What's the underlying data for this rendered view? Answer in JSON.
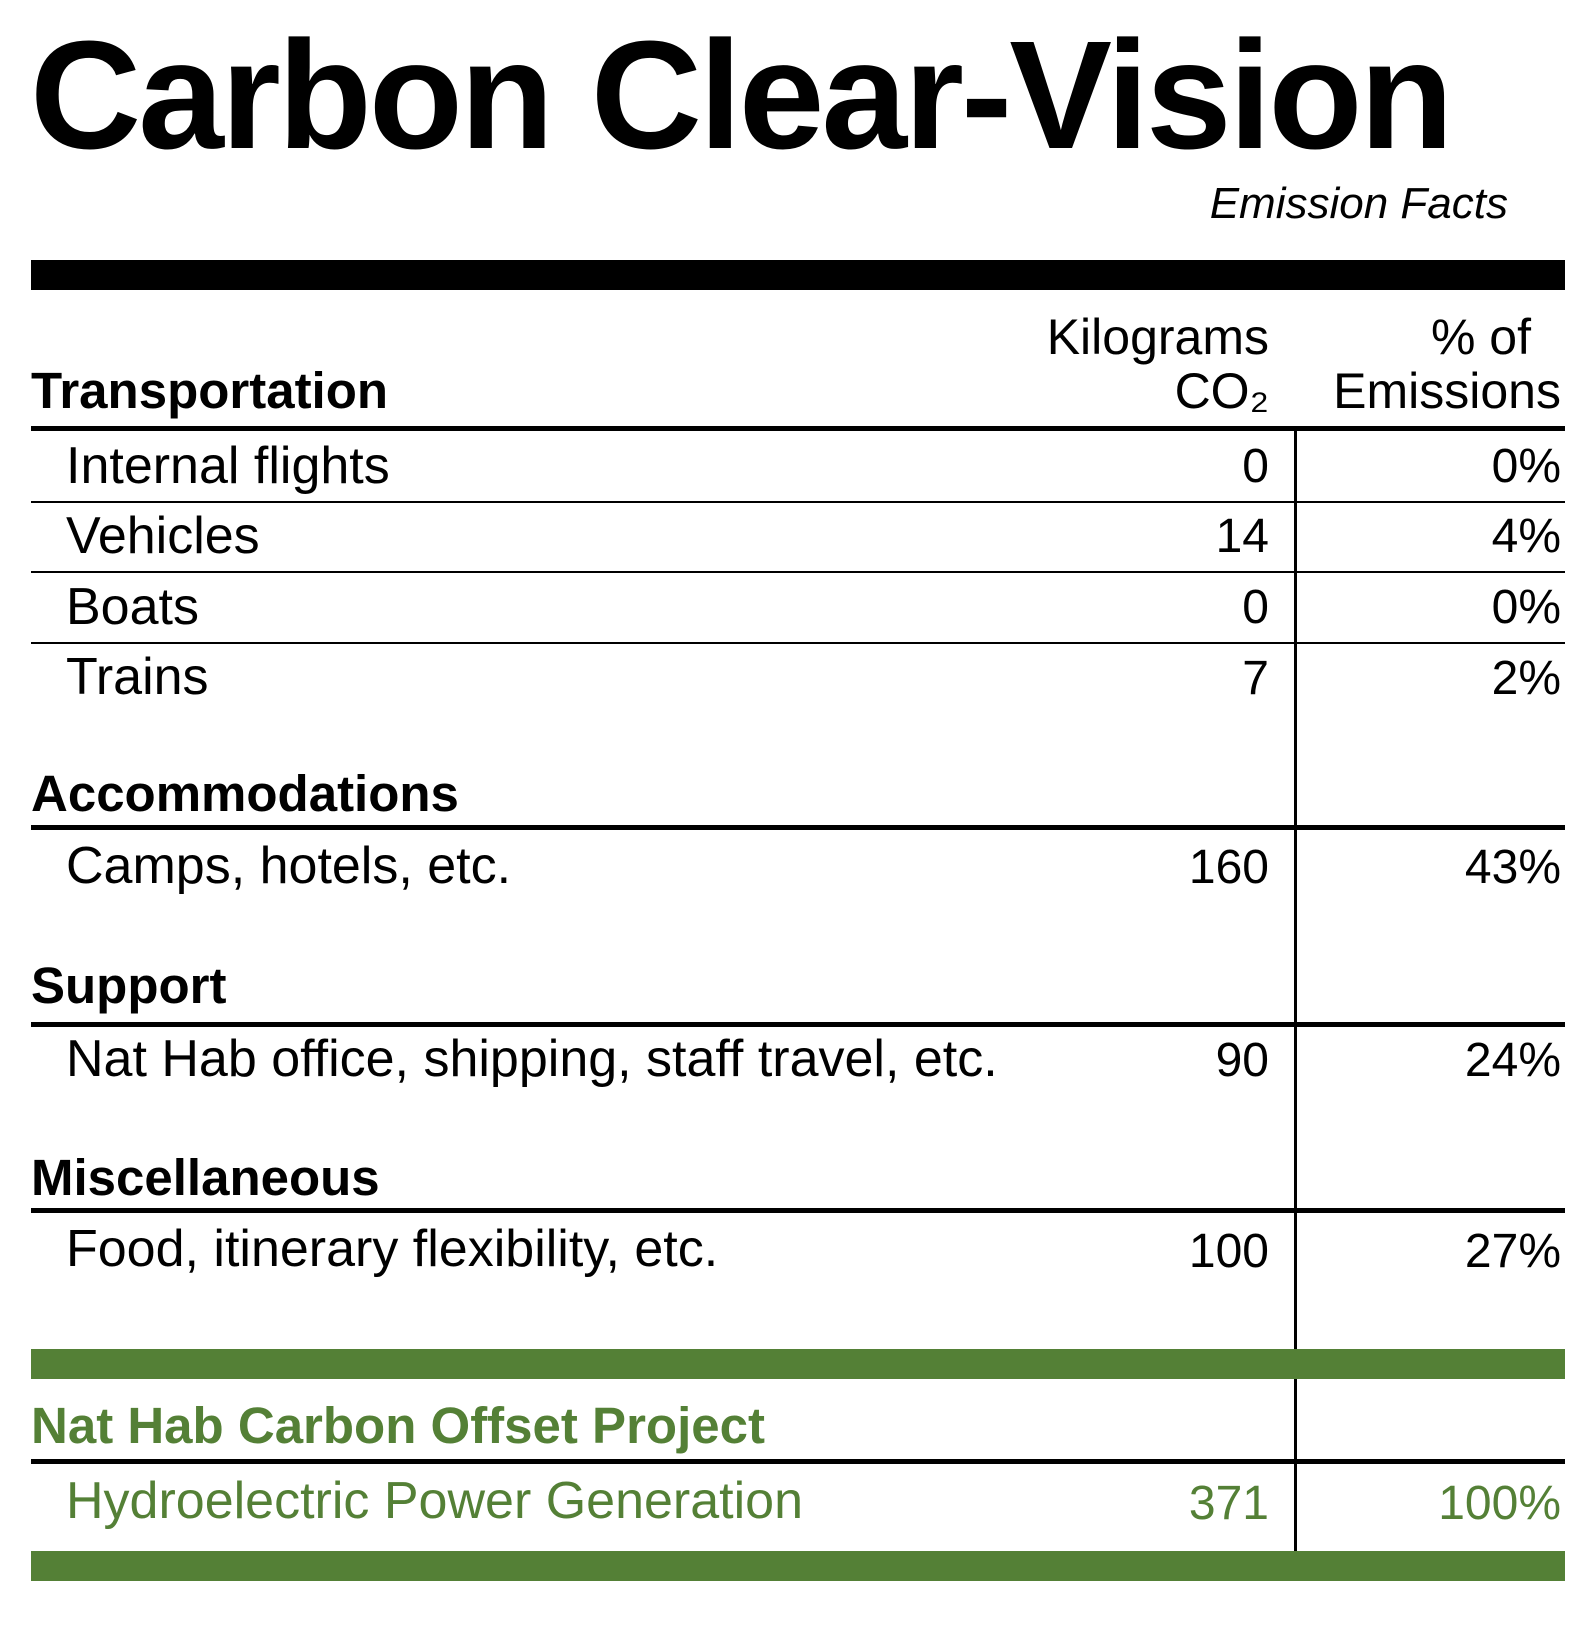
{
  "title": "Carbon Clear-Vision",
  "subtitle": "Emission Facts",
  "columns": {
    "kg_line1": "Kilograms",
    "kg_line2": "CO₂",
    "pct_line1": "% of",
    "pct_line2": "Emissions"
  },
  "sections": [
    {
      "heading": "Transportation",
      "rows": [
        {
          "label": "Internal flights",
          "kg": "0",
          "pct": "0%"
        },
        {
          "label": "Vehicles",
          "kg": "14",
          "pct": "4%"
        },
        {
          "label": "Boats",
          "kg": "0",
          "pct": "0%"
        },
        {
          "label": "Trains",
          "kg": "7",
          "pct": "2%"
        }
      ]
    },
    {
      "heading": "Accommodations",
      "rows": [
        {
          "label": "Camps, hotels, etc.",
          "kg": "160",
          "pct": "43%"
        }
      ]
    },
    {
      "heading": "Support",
      "rows": [
        {
          "label": "Nat Hab office, shipping, staff travel, etc.",
          "kg": "90",
          "pct": "24%"
        }
      ]
    },
    {
      "heading": "Miscellaneous",
      "rows": [
        {
          "label": "Food, itinerary flexibility, etc.",
          "kg": "100",
          "pct": "27%"
        }
      ]
    }
  ],
  "offset": {
    "heading": "Nat Hab Carbon Offset Project",
    "label": "Hydroelectric Power Generation",
    "kg": "371",
    "pct": "100%"
  },
  "colors": {
    "accent_green": "#548036",
    "text": "#000000",
    "background": "#ffffff"
  }
}
